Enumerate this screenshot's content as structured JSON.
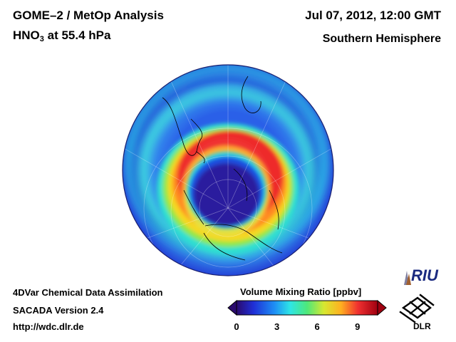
{
  "header": {
    "title": "GOME–2 / MetOp Analysis",
    "species_main": "HNO",
    "species_sub": "3",
    "species_rest": " at 55.4 hPa",
    "date": "Jul 07, 2012, 12:00 GMT",
    "region": "Southern Hemisphere"
  },
  "footer": {
    "line1": "4DVar Chemical Data Assimilation",
    "line2": "SACADA Version 2.4",
    "line3": "http://wdc.dlr.de"
  },
  "colorbar": {
    "title": "Volume Mixing Ratio [ppbv]",
    "ticks": [
      "0",
      "3",
      "6",
      "9"
    ],
    "range": [
      0,
      10.5
    ],
    "colors": [
      "#2a0a6e",
      "#1f2fd6",
      "#1e8ff5",
      "#2ee6e6",
      "#4ee87a",
      "#d8e830",
      "#ffb020",
      "#f03030",
      "#a00010"
    ]
  },
  "map": {
    "projection": "orthographic-south-polar",
    "field": "HNO3",
    "pressure_level": "55.4 hPa",
    "pattern": "vortex-ring",
    "core_value": 1,
    "ring_peak_value": 10,
    "outer_value": 4,
    "icons": [
      "graticule",
      "coastlines"
    ]
  },
  "logos": {
    "riu": "RIU",
    "dlr": "DLR"
  }
}
